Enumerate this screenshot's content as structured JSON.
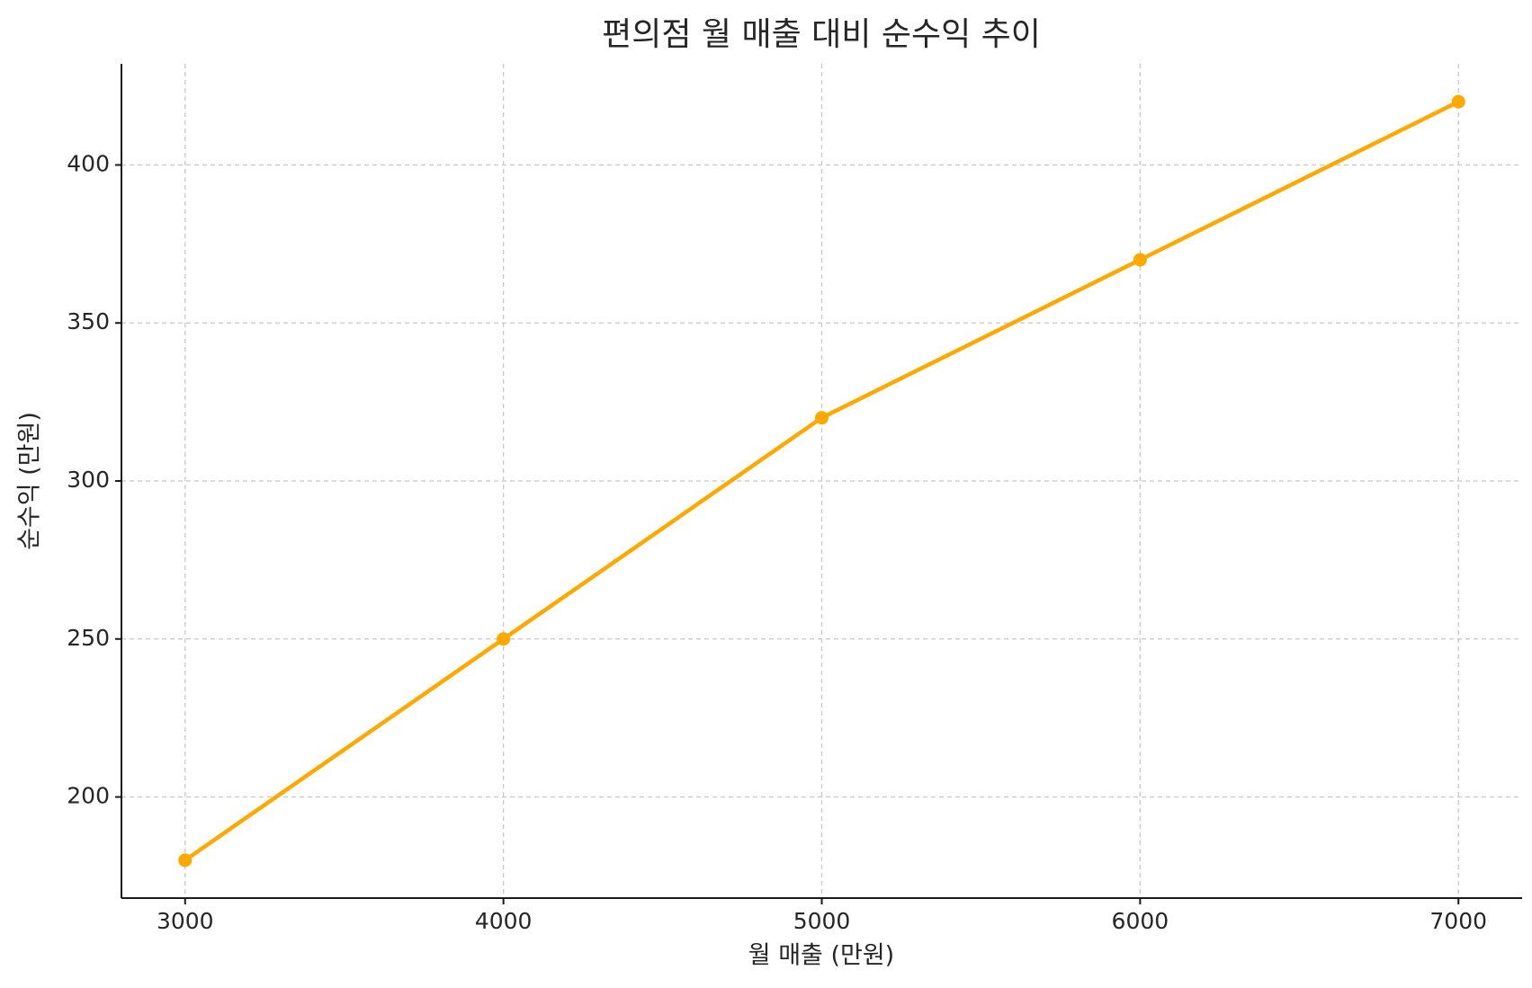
{
  "chart_data": {
    "type": "line",
    "title": "편의점 월 매출 대비 순수익 추이",
    "x_label": "월 매출 (만원)",
    "y_label": "순수익 (만원)",
    "x": [
      3000,
      4000,
      5000,
      6000,
      7000
    ],
    "series": [
      {
        "name": "순수익",
        "color": "#ffa800",
        "values": [
          180,
          250,
          320,
          370,
          420
        ]
      }
    ],
    "xlim": [
      2800,
      7200
    ],
    "xticks": [
      3000,
      4000,
      5000,
      6000,
      7000
    ],
    "ylim": [
      168,
      432
    ],
    "yticks": [
      200,
      250,
      300,
      350,
      400
    ],
    "grid": true,
    "marker": "circle"
  }
}
